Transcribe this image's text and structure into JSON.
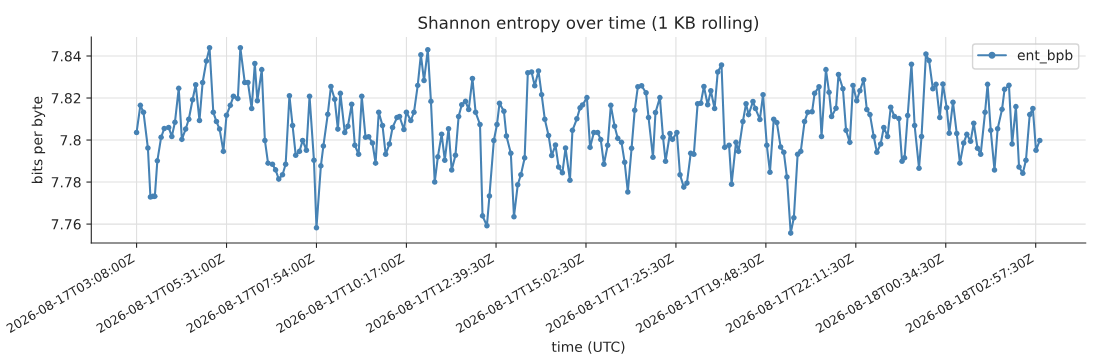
{
  "chart_data": {
    "type": "line",
    "title": "Shannon entropy over time (1 KB rolling)",
    "xlabel": "time (UTC)",
    "ylabel": "bits per byte",
    "xlim": [
      "2026-08-17T01:56",
      "2026-08-18T04:17"
    ],
    "ylim": [
      7.751,
      7.849
    ],
    "xticks": [
      {
        "value": "2026-08-17T03:08",
        "label": "2026-08-17T03:08:00Z"
      },
      {
        "value": "2026-08-17T05:31",
        "label": "2026-08-17T05:31:00Z"
      },
      {
        "value": "2026-08-17T07:54",
        "label": "2026-08-17T07:54:00Z"
      },
      {
        "value": "2026-08-17T10:17",
        "label": "2026-08-17T10:17:00Z"
      },
      {
        "value": "2026-08-17T12:39:30",
        "label": "2026-08-17T12:39:30Z"
      },
      {
        "value": "2026-08-17T15:02:30",
        "label": "2026-08-17T15:02:30Z"
      },
      {
        "value": "2026-08-17T17:25:30",
        "label": "2026-08-17T17:25:30Z"
      },
      {
        "value": "2026-08-17T19:48:30",
        "label": "2026-08-17T19:48:30Z"
      },
      {
        "value": "2026-08-17T22:11:30",
        "label": "2026-08-17T22:11:30Z"
      },
      {
        "value": "2026-08-18T00:34:30",
        "label": "2026-08-18T00:34:30Z"
      },
      {
        "value": "2026-08-18T02:57:30",
        "label": "2026-08-18T02:57:30Z"
      }
    ],
    "yticks": [
      7.76,
      7.78,
      7.8,
      7.82,
      7.84
    ],
    "grid": true,
    "legend": "top right",
    "marker": "circle",
    "line_style": "solid",
    "series": [
      {
        "name": "ent_bpb",
        "color": "#4682b4",
        "x": [
          "2026-08-17T03:08",
          "2026-08-17T03:14",
          "2026-08-17T03:19",
          "2026-08-17T03:26",
          "2026-08-17T03:30",
          "2026-08-17T03:34",
          "2026-08-17T03:37",
          "2026-08-17T03:41",
          "2026-08-17T03:47",
          "2026-08-17T03:52",
          "2026-08-17T03:59",
          "2026-08-17T04:04",
          "2026-08-17T04:09",
          "2026-08-17T04:15",
          "2026-08-17T04:20",
          "2026-08-17T04:26",
          "2026-08-17T04:31",
          "2026-08-17T04:37",
          "2026-08-17T04:42",
          "2026-08-17T04:48",
          "2026-08-17T04:53",
          "2026-08-17T04:59",
          "2026-08-17T05:04",
          "2026-08-17T05:10",
          "2026-08-17T05:15",
          "2026-08-17T05:20",
          "2026-08-17T05:26",
          "2026-08-17T05:31",
          "2026-08-17T05:37",
          "2026-08-17T05:42",
          "2026-08-17T05:49",
          "2026-08-17T05:53",
          "2026-08-17T06:00",
          "2026-08-17T06:05",
          "2026-08-17T06:11",
          "2026-08-17T06:16",
          "2026-08-17T06:20",
          "2026-08-17T06:27",
          "2026-08-17T06:32",
          "2026-08-17T06:37",
          "2026-08-17T06:44",
          "2026-08-17T06:49",
          "2026-08-17T06:54",
          "2026-08-17T07:00",
          "2026-08-17T07:05",
          "2026-08-17T07:11",
          "2026-08-17T07:16",
          "2026-08-17T07:21",
          "2026-08-17T07:27",
          "2026-08-17T07:32",
          "2026-08-17T07:38",
          "2026-08-17T07:43",
          "2026-08-17T07:50",
          "2026-08-17T07:54",
          "2026-08-17T08:01",
          "2026-08-17T08:05",
          "2026-08-17T08:12",
          "2026-08-17T08:17",
          "2026-08-17T08:23",
          "2026-08-17T08:28",
          "2026-08-17T08:32",
          "2026-08-17T08:39",
          "2026-08-17T08:44",
          "2026-08-17T08:50",
          "2026-08-17T08:55",
          "2026-08-17T09:01",
          "2026-08-17T09:06",
          "2026-08-17T09:12",
          "2026-08-17T09:17",
          "2026-08-17T09:23",
          "2026-08-17T09:28",
          "2026-08-17T09:33",
          "2026-08-17T09:39",
          "2026-08-17T09:44",
          "2026-08-17T09:50",
          "2026-08-17T09:55",
          "2026-08-17T10:02",
          "2026-08-17T10:06",
          "2026-08-17T10:13",
          "2026-08-17T10:17",
          "2026-08-17T10:24",
          "2026-08-17T10:29",
          "2026-08-17T10:35",
          "2026-08-17T10:40",
          "2026-08-17T10:45",
          "2026-08-17T10:51",
          "2026-08-17T10:56",
          "2026-08-17T11:02",
          "2026-08-17T11:07",
          "2026-08-17T11:13",
          "2026-08-17T11:18",
          "2026-08-17T11:24",
          "2026-08-17T11:29",
          "2026-08-17T11:35",
          "2026-08-17T11:40",
          "2026-08-17T11:45",
          "2026-08-17T11:51",
          "2026-08-17T11:56",
          "2026-08-17T12:02",
          "2026-08-17T12:07",
          "2026-08-17T12:14",
          "2026-08-17T12:18",
          "2026-08-17T12:25",
          "2026-08-17T12:29",
          "2026-08-17T12:36",
          "2026-08-17T12:41",
          "2026-08-17T12:45",
          "2026-08-17T12:52",
          "2026-08-17T12:56",
          "2026-08-17T13:03",
          "2026-08-17T13:08",
          "2026-08-17T13:14",
          "2026-08-17T13:19",
          "2026-08-17T13:25",
          "2026-08-17T13:30",
          "2026-08-17T13:36",
          "2026-08-17T13:41",
          "2026-08-17T13:47",
          "2026-08-17T13:52",
          "2026-08-17T13:57",
          "2026-08-17T14:03",
          "2026-08-17T14:08",
          "2026-08-17T14:14",
          "2026-08-17T14:19",
          "2026-08-17T14:25",
          "2026-08-17T14:30",
          "2026-08-17T14:37",
          "2026-08-17T14:41",
          "2026-08-17T14:48",
          "2026-08-17T14:53",
          "2026-08-17T14:57",
          "2026-08-17T15:04",
          "2026-08-17T15:09",
          "2026-08-17T15:15",
          "2026-08-17T15:21",
          "2026-08-17T15:26",
          "2026-08-17T15:31",
          "2026-08-17T15:37",
          "2026-08-17T15:42",
          "2026-08-17T15:48",
          "2026-08-17T15:53",
          "2026-08-17T15:59",
          "2026-08-17T16:04",
          "2026-08-17T16:09",
          "2026-08-17T16:15",
          "2026-08-17T16:20",
          "2026-08-17T16:25",
          "2026-08-17T16:31",
          "2026-08-17T16:38",
          "2026-08-17T16:42",
          "2026-08-17T16:49",
          "2026-08-17T16:53",
          "2026-08-17T17:00",
          "2026-08-17T17:05",
          "2026-08-17T17:09",
          "2026-08-17T17:16",
          "2026-08-17T17:20",
          "2026-08-17T17:27",
          "2026-08-17T17:32",
          "2026-08-17T17:38",
          "2026-08-17T17:43",
          "2026-08-17T17:49",
          "2026-08-17T17:54",
          "2026-08-17T18:00",
          "2026-08-17T18:05",
          "2026-08-17T18:10",
          "2026-08-17T18:16",
          "2026-08-17T18:21",
          "2026-08-17T18:27",
          "2026-08-17T18:32",
          "2026-08-17T18:38",
          "2026-08-17T18:43",
          "2026-08-17T18:50",
          "2026-08-17T18:54",
          "2026-08-17T19:01",
          "2026-08-17T19:05",
          "2026-08-17T19:12",
          "2026-08-17T19:17",
          "2026-08-17T19:21",
          "2026-08-17T19:28",
          "2026-08-17T19:32",
          "2026-08-17T19:39",
          "2026-08-17T19:44",
          "2026-08-17T19:50",
          "2026-08-17T19:55",
          "2026-08-17T20:01",
          "2026-08-17T20:06",
          "2026-08-17T20:12",
          "2026-08-17T20:17",
          "2026-08-17T20:22",
          "2026-08-17T20:28",
          "2026-08-17T20:33",
          "2026-08-17T20:39",
          "2026-08-17T20:44",
          "2026-08-17T20:50",
          "2026-08-17T20:55",
          "2026-08-17T21:02",
          "2026-08-17T21:06",
          "2026-08-17T21:13",
          "2026-08-17T21:17",
          "2026-08-17T21:24",
          "2026-08-17T21:29",
          "2026-08-17T21:33",
          "2026-08-17T21:40",
          "2026-08-17T21:44",
          "2026-08-17T21:51",
          "2026-08-17T21:56",
          "2026-08-17T22:02",
          "2026-08-17T22:07",
          "2026-08-17T22:13",
          "2026-08-17T22:18",
          "2026-08-17T22:24",
          "2026-08-17T22:29",
          "2026-08-17T22:34",
          "2026-08-17T22:40",
          "2026-08-17T22:45",
          "2026-08-17T22:51",
          "2026-08-17T22:56",
          "2026-08-17T23:02",
          "2026-08-17T23:07",
          "2026-08-17T23:13",
          "2026-08-17T23:20",
          "2026-08-17T23:25",
          "2026-08-17T23:29",
          "2026-08-17T23:34",
          "2026-08-17T23:40",
          "2026-08-17T23:45",
          "2026-08-17T23:52",
          "2026-08-17T23:56",
          "2026-08-18T00:03",
          "2026-08-18T00:08",
          "2026-08-18T00:14",
          "2026-08-18T00:19",
          "2026-08-18T00:25",
          "2026-08-18T00:30",
          "2026-08-18T00:36",
          "2026-08-18T00:40",
          "2026-08-18T00:46",
          "2026-08-18T00:52",
          "2026-08-18T00:57",
          "2026-08-18T01:03",
          "2026-08-18T01:08",
          "2026-08-18T01:14",
          "2026-08-18T01:19",
          "2026-08-18T01:25",
          "2026-08-18T01:30",
          "2026-08-18T01:37",
          "2026-08-18T01:41",
          "2026-08-18T01:46",
          "2026-08-18T01:52",
          "2026-08-18T01:57",
          "2026-08-18T02:04",
          "2026-08-18T02:08",
          "2026-08-18T02:15",
          "2026-08-18T02:20",
          "2026-08-18T02:26",
          "2026-08-18T02:31",
          "2026-08-18T02:37",
          "2026-08-18T02:42",
          "2026-08-18T02:48",
          "2026-08-18T02:53",
          "2026-08-18T02:58",
          "2026-08-18T03:04"
        ],
        "values": [
          7.8036,
          7.8165,
          7.8132,
          7.7962,
          7.7729,
          7.7732,
          7.7732,
          7.7901,
          7.8013,
          7.8055,
          7.806,
          7.8017,
          7.8085,
          7.8246,
          7.8003,
          7.8052,
          7.8099,
          7.8192,
          7.8263,
          7.8093,
          7.8274,
          7.8376,
          7.8439,
          7.8132,
          7.8088,
          7.8052,
          7.7946,
          7.8118,
          7.8165,
          7.8208,
          7.8197,
          7.8439,
          7.8274,
          7.8274,
          7.815,
          7.8364,
          7.8187,
          7.8335,
          7.7998,
          7.789,
          7.7885,
          7.7858,
          7.7814,
          7.7835,
          7.7885,
          7.8211,
          7.8069,
          7.7928,
          7.7946,
          7.7998,
          7.7951,
          7.8208,
          7.7904,
          7.7583,
          7.7877,
          7.7972,
          7.8123,
          7.8255,
          7.8194,
          7.8052,
          7.8222,
          7.8036,
          7.8066,
          7.817,
          7.7975,
          7.7932,
          7.8208,
          7.8013,
          7.8016,
          7.7986,
          7.789,
          7.8132,
          7.8069,
          7.7932,
          7.7981,
          7.806,
          7.8107,
          7.8112,
          7.805,
          7.8132,
          7.8093,
          7.8132,
          7.826,
          7.8406,
          7.8283,
          7.843,
          7.8184,
          7.78,
          7.792,
          7.8028,
          7.7904,
          7.8054,
          7.7857,
          7.7928,
          7.8112,
          7.8168,
          7.8184,
          7.8145,
          7.8293,
          7.8132,
          7.8074,
          7.7639,
          7.7592,
          7.7734,
          7.7998,
          7.8074,
          7.8175,
          7.8137,
          7.8019,
          7.7937,
          7.7635,
          7.7787,
          7.7835,
          7.7915,
          7.832,
          7.8324,
          7.8258,
          7.8329,
          7.8216,
          7.8099,
          7.8022,
          7.7926,
          7.7976,
          7.7872,
          7.7844,
          7.7962,
          7.7809,
          7.8046,
          7.8101,
          7.8153,
          7.8167,
          7.8202,
          7.7965,
          7.8036,
          7.8036,
          7.8002,
          7.7885,
          7.7975,
          7.8165,
          7.8066,
          7.8008,
          7.7989,
          7.7894,
          7.7753,
          7.7961,
          7.8142,
          7.8254,
          7.8258,
          7.8225,
          7.8107,
          7.7918,
          7.8131,
          7.8202,
          7.8013,
          7.7899,
          7.8031,
          7.8003,
          7.8036,
          7.7835,
          7.7776,
          7.7795,
          7.7937,
          7.7932,
          7.8173,
          7.8175,
          7.8255,
          7.8168,
          7.8235,
          7.815,
          7.8324,
          7.8357,
          7.7965,
          7.7975,
          7.779,
          7.7989,
          7.7946,
          7.8088,
          7.8173,
          7.8121,
          7.8183,
          7.815,
          7.8098,
          7.8216,
          7.7975,
          7.7847,
          7.8099,
          7.8083,
          7.7967,
          7.7942,
          7.7824,
          7.7557,
          7.763,
          7.7932,
          7.7946,
          7.8088,
          7.8132,
          7.8135,
          7.8222,
          7.8254,
          7.8017,
          7.8335,
          7.8227,
          7.8112,
          7.8151,
          7.8312,
          7.8244,
          7.8046,
          7.7989,
          7.826,
          7.8187,
          7.8235,
          7.8287,
          7.8145,
          7.8121,
          7.8017,
          7.7942,
          7.7981,
          7.806,
          7.8017,
          7.8156,
          7.8112,
          7.8102,
          7.7899,
          7.7915,
          7.8117,
          7.8361,
          7.8069,
          7.7866,
          7.8017,
          7.8409,
          7.8378,
          7.8244,
          7.8265,
          7.8107,
          7.8266,
          7.8154,
          7.8032,
          7.818,
          7.8031,
          7.789,
          7.7986,
          7.8027,
          7.7994,
          7.808,
          7.7961,
          7.7932,
          7.8132,
          7.8265,
          7.8046,
          7.7857,
          7.8054,
          7.8146,
          7.8241,
          7.8261,
          7.7981,
          7.8159,
          7.7872,
          7.7842,
          7.7904,
          7.8121,
          7.815,
          7.7951,
          7.7998
        ]
      }
    ]
  }
}
